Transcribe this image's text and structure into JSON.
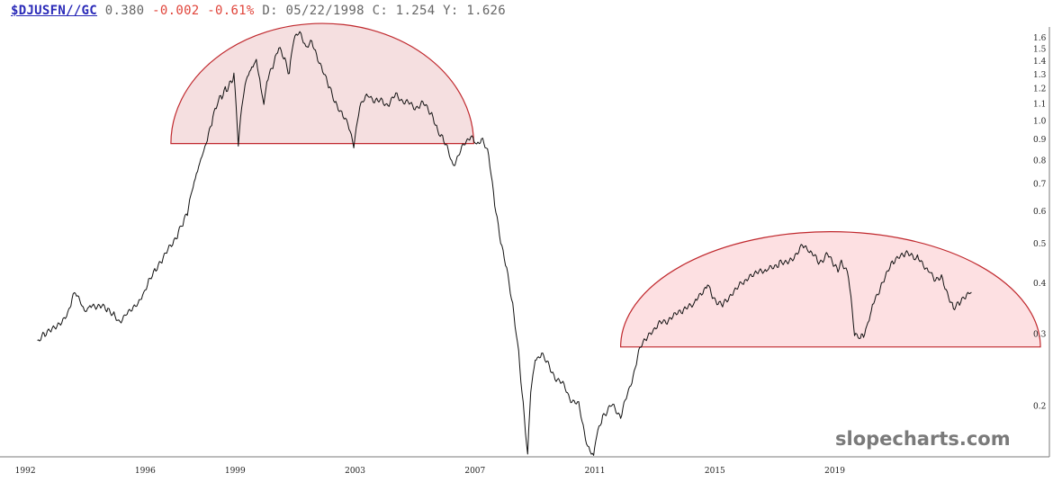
{
  "header": {
    "symbol": "$DJUSFN//GC",
    "last": "0.380",
    "change": "-0.002",
    "change_pct": "-0.61%",
    "date_label": "D: 05/22/1998",
    "close_label": "C: 1.254",
    "y_label": "Y: 1.626"
  },
  "watermark": "slopecharts.com",
  "colors": {
    "line": "#111111",
    "shape_fill": "#f5dfe0",
    "shape_fill_right": "#fde0e2",
    "shape_stroke": "#c0282d",
    "axis": "#7a7a7a",
    "negative": "#e0443a",
    "symbol": "#2a2ab8"
  },
  "chart_data": {
    "type": "line",
    "series": [
      {
        "x": [
          1992.45,
          1992.7,
          1992.9,
          1993.1,
          1993.3,
          1993.5,
          1993.6,
          1993.75,
          1993.9,
          1994.05,
          1994.2,
          1994.4,
          1994.6,
          1994.8,
          1995.0,
          1995.2,
          1995.4,
          1995.6,
          1995.8,
          1996.0,
          1996.2,
          1996.4,
          1996.6,
          1996.8,
          1997.0,
          1997.15,
          1997.3,
          1997.45,
          1997.6,
          1997.75,
          1997.9,
          1998.0,
          1998.15,
          1998.3,
          1998.45,
          1998.6,
          1998.75,
          1998.9,
          1999.0,
          1999.15,
          1999.3,
          1999.45,
          1999.6,
          1999.75,
          1999.9,
          2000.0,
          2000.1,
          2000.3,
          2000.5,
          2000.7,
          2000.85,
          2001.0,
          2001.2,
          2001.4,
          2001.6,
          2001.8,
          2002.0,
          2002.2,
          2002.4,
          2002.6,
          2002.8,
          2003.0,
          2003.2,
          2003.5,
          2003.8,
          2004.1,
          2004.4,
          2004.7,
          2005.0,
          2005.3,
          2005.6,
          2005.8,
          2006.0,
          2006.3,
          2006.6,
          2006.9,
          2007.1,
          2007.3,
          2007.5,
          2007.7,
          2007.9,
          2008.1,
          2008.3,
          2008.5,
          2008.65,
          2008.8,
          2008.9,
          2009.05,
          2009.3,
          2009.6,
          2009.9,
          2010.2,
          2010.5,
          2010.8,
          2011.0,
          2011.1,
          2011.3,
          2011.6,
          2011.9,
          2012.2,
          2012.5,
          2012.8,
          2013.0,
          2013.3,
          2013.6,
          2014.0,
          2014.4,
          2014.8,
          2015.0,
          2015.3,
          2015.6,
          2016.0,
          2016.4,
          2016.8,
          2017.2,
          2017.6,
          2018.0,
          2018.2,
          2018.5,
          2018.8,
          2019.0,
          2019.15,
          2019.3,
          2019.5,
          2019.7,
          2019.9,
          2020.0,
          2020.15,
          2020.3,
          2020.6,
          2021.0,
          2021.4,
          2021.8,
          2022.2,
          2022.4,
          2022.6,
          2022.8,
          2023.0,
          2023.2,
          2023.4,
          2023.6
        ],
        "y": [
          0.29,
          0.298,
          0.305,
          0.31,
          0.32,
          0.34,
          0.37,
          0.38,
          0.36,
          0.34,
          0.35,
          0.345,
          0.35,
          0.342,
          0.335,
          0.322,
          0.34,
          0.35,
          0.36,
          0.38,
          0.41,
          0.43,
          0.45,
          0.48,
          0.5,
          0.53,
          0.56,
          0.6,
          0.68,
          0.74,
          0.8,
          0.85,
          0.93,
          1.02,
          1.1,
          1.15,
          1.2,
          1.25,
          1.3,
          0.88,
          1.15,
          1.3,
          1.35,
          1.4,
          1.2,
          1.1,
          1.25,
          1.35,
          1.5,
          1.4,
          1.3,
          1.6,
          1.65,
          1.5,
          1.55,
          1.4,
          1.3,
          1.2,
          1.1,
          1.05,
          1.0,
          0.88,
          1.1,
          1.15,
          1.12,
          1.1,
          1.15,
          1.12,
          1.08,
          1.1,
          1.05,
          0.95,
          0.9,
          0.78,
          0.85,
          0.93,
          0.88,
          0.9,
          0.82,
          0.62,
          0.5,
          0.43,
          0.35,
          0.27,
          0.2,
          0.15,
          0.22,
          0.26,
          0.27,
          0.24,
          0.23,
          0.21,
          0.2,
          0.16,
          0.15,
          0.17,
          0.19,
          0.2,
          0.19,
          0.22,
          0.27,
          0.3,
          0.31,
          0.32,
          0.33,
          0.34,
          0.36,
          0.4,
          0.37,
          0.35,
          0.38,
          0.4,
          0.42,
          0.43,
          0.45,
          0.46,
          0.5,
          0.48,
          0.45,
          0.47,
          0.44,
          0.43,
          0.45,
          0.42,
          0.3,
          0.29,
          0.3,
          0.32,
          0.35,
          0.4,
          0.45,
          0.47,
          0.46,
          0.43,
          0.41,
          0.42,
          0.38,
          0.35,
          0.36,
          0.37,
          0.38
        ]
      }
    ],
    "y_ticks": [
      "0.2",
      "0.3",
      "0.4",
      "0.5",
      "0.6",
      "0.7",
      "0.8",
      "0.9",
      "1.0",
      "1.1",
      "1.2",
      "1.3",
      "1.4",
      "1.5",
      "1.6"
    ],
    "x_ticks": [
      "1992",
      "1996",
      "1999",
      "2003",
      "2007",
      "2011",
      "2015",
      "2019"
    ],
    "y_scale": "log",
    "ylim": [
      0.15,
      1.7
    ],
    "xlim": [
      1991.2,
      2026.2
    ],
    "grid": false,
    "annotations": [
      {
        "type": "half-ellipse",
        "x_start": 1996.9,
        "x_end": 2007.0,
        "base_y": 0.88,
        "top_y": 1.75
      },
      {
        "type": "half-ellipse",
        "x_start": 2011.9,
        "x_end": 2025.9,
        "base_y": 0.279,
        "top_y": 0.535
      }
    ]
  }
}
